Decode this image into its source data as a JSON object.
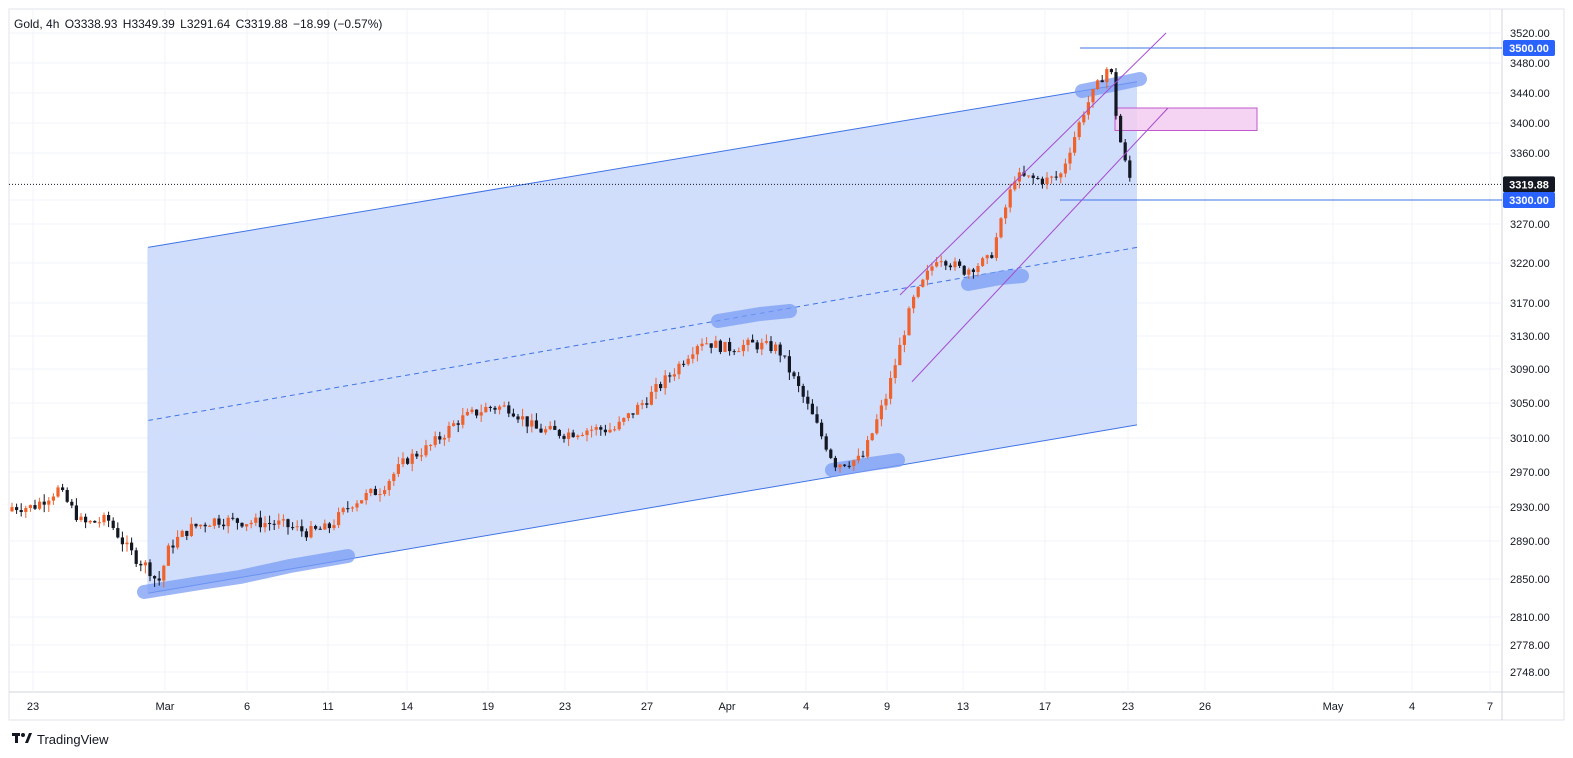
{
  "legend": {
    "symbol": "Gold, 4h",
    "open": "O3338.93",
    "high": "H3349.39",
    "low": "L3291.64",
    "close": "C3319.88",
    "change": "−18.99 (−0.57%)"
  },
  "branding": {
    "name": "TradingView",
    "icon": "tradingview-logo-icon"
  },
  "colors": {
    "up": "#f0622b",
    "down": "#131722",
    "channel_fill": "#c8d8fb",
    "channel_line": "#3f73e6",
    "purple": "#a64bd1",
    "zone_fill": "#f2cdf0",
    "zone_stroke": "#c05acb",
    "highlight": "#7a9cf4",
    "price_label_dark": "#131722",
    "price_label_blue": "#2962ff"
  },
  "chart_data": {
    "type": "candlestick",
    "symbol": "Gold",
    "timeframe": "4h",
    "y_ticks": [
      3520,
      3480,
      3440,
      3400,
      3360,
      3300,
      3270,
      3220,
      3170,
      3130,
      3090,
      3050,
      3010,
      2970,
      2930,
      2890,
      2850,
      2810,
      2778,
      2748
    ],
    "x_ticks": [
      "23",
      "Mar",
      "6",
      "11",
      "14",
      "19",
      "23",
      "27",
      "Apr",
      "4",
      "9",
      "13",
      "17",
      "23",
      "26",
      "May",
      "4",
      "7"
    ],
    "current_price": "3319.88",
    "level_labels": [
      "3500.00",
      "3300.00"
    ],
    "key_closes": [
      [
        "Feb 23",
        2930
      ],
      [
        "Feb 24",
        2950
      ],
      [
        "Feb 25",
        2910
      ],
      [
        "Feb 26",
        2915
      ],
      [
        "Feb 27",
        2880
      ],
      [
        "Feb 28",
        2860
      ],
      [
        "Feb 28",
        2845
      ],
      [
        "Mar 3",
        2885
      ],
      [
        "Mar 4",
        2905
      ],
      [
        "Mar 5",
        2915
      ],
      [
        "Mar 7",
        2910
      ],
      [
        "Mar 10",
        2900
      ],
      [
        "Mar 11",
        2905
      ],
      [
        "Mar 12",
        2935
      ],
      [
        "Mar 13",
        2950
      ],
      [
        "Mar 14",
        2985
      ],
      [
        "Mar 17",
        3000
      ],
      [
        "Mar 18",
        3030
      ],
      [
        "Mar 19",
        3045
      ],
      [
        "Mar 20",
        3045
      ],
      [
        "Mar 21",
        3020
      ],
      [
        "Mar 24",
        3015
      ],
      [
        "Mar 25",
        3020
      ],
      [
        "Mar 26",
        3020
      ],
      [
        "Mar 27",
        3055
      ],
      [
        "Mar 28",
        3085
      ],
      [
        "Mar 31",
        3125
      ],
      [
        "Apr 1",
        3115
      ],
      [
        "Apr 2",
        3120
      ],
      [
        "Apr 3",
        3115
      ],
      [
        "Apr 4",
        3050
      ],
      [
        "Apr 7",
        2980
      ],
      [
        "Apr 8",
        2985
      ],
      [
        "Apr 9",
        3060
      ],
      [
        "Apr 10",
        3170
      ],
      [
        "Apr 11",
        3230
      ],
      [
        "Apr 14",
        3210
      ],
      [
        "Apr 15",
        3225
      ],
      [
        "Apr 16",
        3330
      ],
      [
        "Apr 17",
        3325
      ],
      [
        "Apr 18",
        3330
      ],
      [
        "Apr 21",
        3420
      ],
      [
        "Apr 22",
        3480
      ],
      [
        "Apr 22",
        3390
      ],
      [
        "Apr 23",
        3330
      ],
      [
        "Apr 23",
        3319.88
      ]
    ],
    "drawings": {
      "channel_upper": [
        [
          "Feb 28",
          3240
        ],
        [
          "Apr 23",
          3455
        ]
      ],
      "channel_lower": [
        [
          "Feb 28",
          2835
        ],
        [
          "Apr 23",
          3025
        ]
      ],
      "channel_mid": [
        [
          "Feb 28",
          3030
        ],
        [
          "Apr 23",
          3240
        ]
      ],
      "ascending_channel_upper": [
        [
          "Apr 10",
          3180
        ],
        [
          "Apr 24",
          3520
        ]
      ],
      "ascending_channel_lower": [
        [
          "Apr 10",
          3075
        ],
        [
          "Apr 24",
          3420
        ]
      ],
      "resistance_zone": [
        3390,
        3420
      ],
      "horizontal_levels": [
        3500,
        3300
      ]
    }
  }
}
